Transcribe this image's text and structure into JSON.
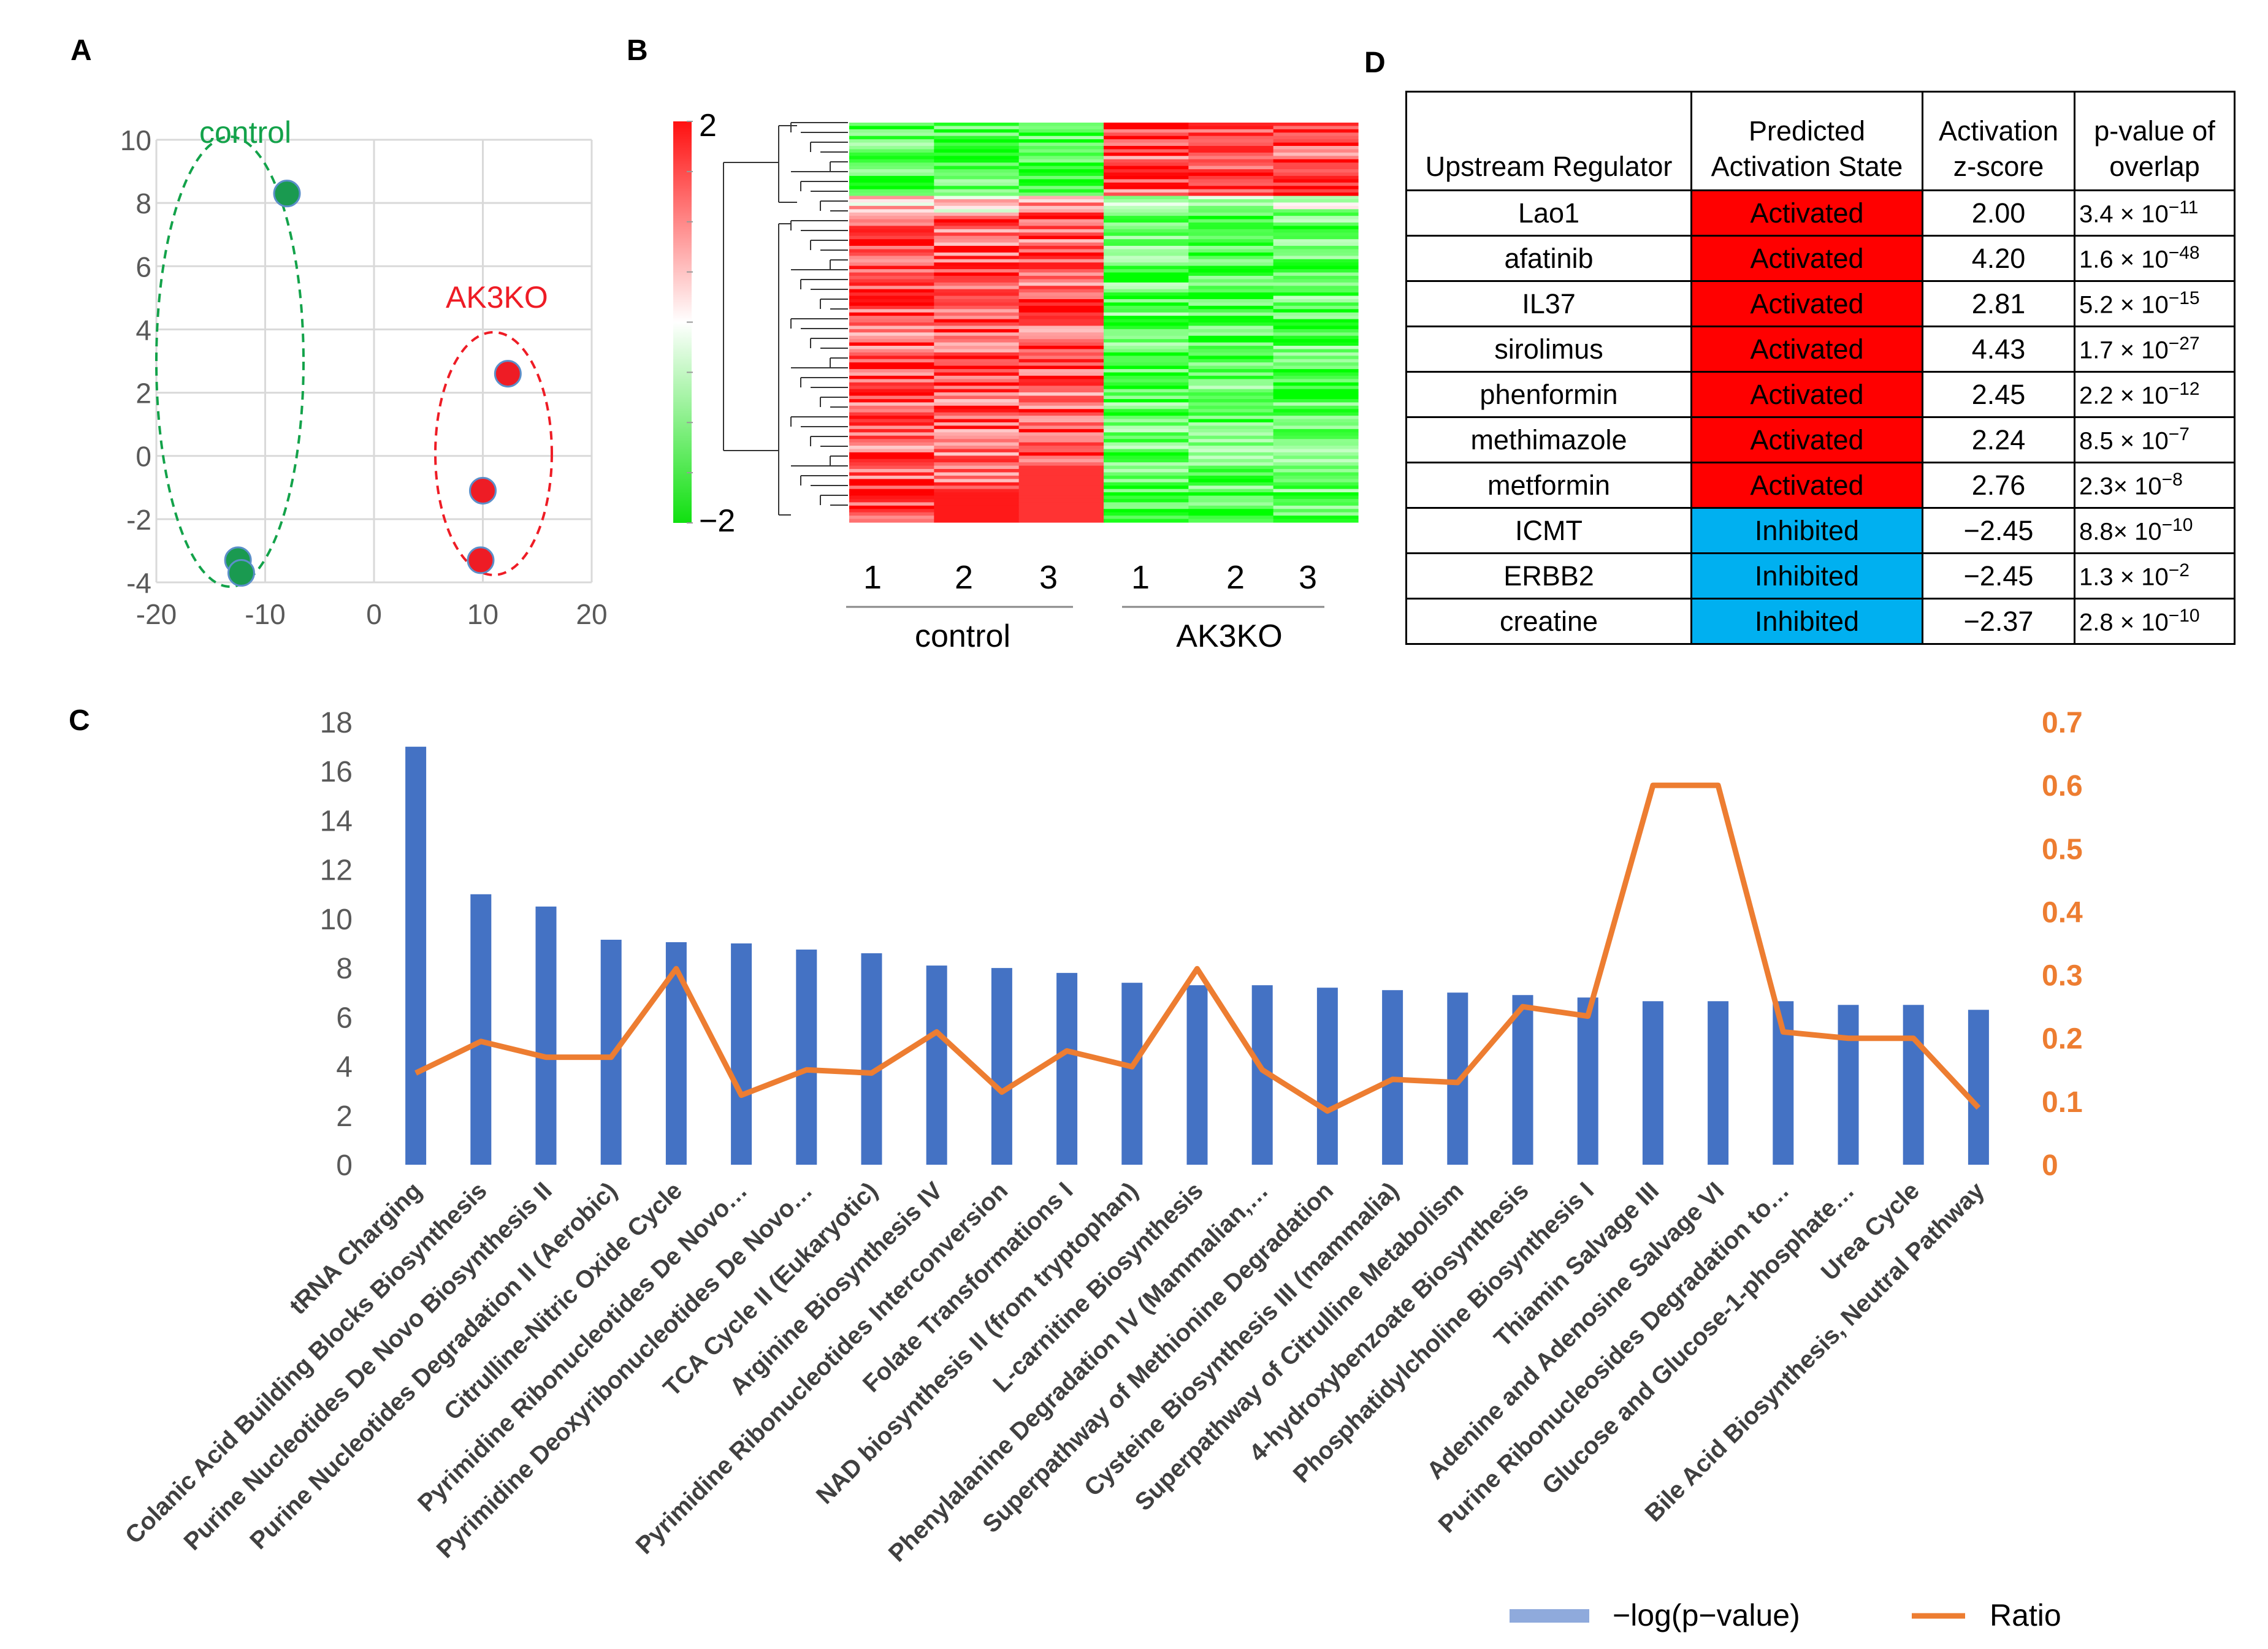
{
  "panel_labels": {
    "A": "A",
    "B": "B",
    "C": "C",
    "D": "D"
  },
  "chart_data": [
    {
      "panel": "A",
      "type": "scatter",
      "xlim": [
        -20,
        20
      ],
      "ylim": [
        -4,
        10
      ],
      "xticks": [
        "-20",
        "-10",
        "0",
        "10",
        "20"
      ],
      "yticks": [
        "10",
        "8",
        "6",
        "4",
        "2",
        "0",
        "-2",
        "-4"
      ],
      "xtick_values": [
        -20,
        -10,
        0,
        10,
        20
      ],
      "ytick_values": [
        10,
        8,
        6,
        4,
        2,
        0,
        -2,
        -4
      ],
      "grid": true,
      "series": [
        {
          "name": "control",
          "color": "#1a9a50",
          "points": [
            [
              -8,
              8.3
            ],
            [
              -12.5,
              -3.3
            ],
            [
              -12.2,
              -3.7
            ]
          ]
        },
        {
          "name": "AK3KO",
          "color": "#ee1c25",
          "points": [
            [
              12.3,
              2.6
            ],
            [
              10,
              -1.1
            ],
            [
              9.8,
              -3.3
            ]
          ]
        }
      ],
      "annotations": {
        "control": "control",
        "ak3ko": "AK3KO"
      },
      "group_colors": {
        "control": "#13a24a",
        "ak3ko": "#ee1c25"
      }
    },
    {
      "panel": "B",
      "type": "heatmap",
      "color_scale": {
        "max_label": "2",
        "min_label": "−2",
        "high_color": "#ff1010",
        "mid_color": "#ffffff",
        "low_color": "#10e010"
      },
      "columns": [
        "1",
        "2",
        "3",
        "1",
        "2",
        "3"
      ],
      "groups": [
        "control",
        "AK3KO"
      ]
    },
    {
      "panel": "C",
      "type": "bar",
      "categories": [
        "tRNA Charging",
        "Colanic Acid Building Blocks Biosynthesis",
        "Purine Nucleotides De Novo Biosynthesis II",
        "Purine Nucleotides Degradation II (Aerobic)",
        "Citrulline-Nitric Oxide Cycle",
        "Pyrimidine Ribonucleotides De Novo…",
        "Pyrimidine Deoxyribonucleotides De Novo…",
        "TCA Cycle II (Eukaryotic)",
        "Arginine Biosynthesis IV",
        "Pyrimidine Ribonucleotides Interconversion",
        "Folate Transformations I",
        "NAD biosynthesis II (from tryptophan)",
        "L-carnitine Biosynthesis",
        "Phenylalanine Degradation IV (Mammalian,…",
        "Superpathway of Methionine Degradation",
        "Cysteine Biosynthesis III (mammalia)",
        "Superpathway of Citrulline Metabolism",
        "4-hydroxybenzoate Biosynthesis",
        "Phosphatidylcholine Biosynthesis I",
        "Thiamin Salvage III",
        "Adenine and Adenosine Salvage VI",
        "Purine Ribonucleosides Degradation to…",
        "Glucose and Glucose-1-phosphate…",
        "Urea Cycle",
        "Bile Acid Biosynthesis, Neutral Pathway"
      ],
      "series": [
        {
          "name": "−log(p−value)",
          "axis": "left",
          "color": "#4472c4",
          "values": [
            17.0,
            11.0,
            10.5,
            9.15,
            9.05,
            9.0,
            8.75,
            8.6,
            8.1,
            8.0,
            7.8,
            7.4,
            7.3,
            7.3,
            7.2,
            7.1,
            7.0,
            6.9,
            6.8,
            6.65,
            6.65,
            6.65,
            6.5,
            6.5,
            6.3
          ]
        },
        {
          "name": "Ratio",
          "axis": "right",
          "color": "#ed7d31",
          "values": [
            0.145,
            0.195,
            0.17,
            0.17,
            0.31,
            0.11,
            0.15,
            0.145,
            0.21,
            0.115,
            0.18,
            0.155,
            0.31,
            0.15,
            0.085,
            0.135,
            0.13,
            0.25,
            0.235,
            0.6,
            0.6,
            0.21,
            0.2,
            0.2,
            0.09
          ]
        }
      ],
      "ylim_left": [
        0,
        18
      ],
      "ylim_right": [
        0,
        0.7
      ],
      "yticks_left": [
        "18",
        "16",
        "14",
        "12",
        "10",
        "8",
        "6",
        "4",
        "2",
        "0"
      ],
      "ytick_values_left": [
        18,
        16,
        14,
        12,
        10,
        8,
        6,
        4,
        2,
        0
      ],
      "yticks_right": [
        "0.7",
        "0.6",
        "0.5",
        "0.4",
        "0.3",
        "0.2",
        "0.1",
        "0"
      ],
      "ytick_values_right": [
        0.7,
        0.6,
        0.5,
        0.4,
        0.3,
        0.2,
        0.1,
        0
      ],
      "legend": {
        "placement": "bottom-right",
        "bar_label": "−log(p−value)",
        "line_label": "Ratio",
        "bar_swatch_color": "#8faadc"
      }
    }
  ],
  "table_D": {
    "headers": {
      "regulator": "Upstream Regulator",
      "state_line1": "Predicted",
      "state_line2": "Activation State",
      "z_line1": "Activation",
      "z_line2": "z-score",
      "p_line1": "p-value of",
      "p_line2": "overlap"
    },
    "activated_color": "#ff0000",
    "inhibited_color": "#00b0f0",
    "rows": [
      {
        "regulator": "Lao1",
        "state": "Activated",
        "z": "2.00",
        "p_base": "3.4 × 10",
        "p_exp": "−11"
      },
      {
        "regulator": "afatinib",
        "state": "Activated",
        "z": "4.20",
        "p_base": "1.6 × 10",
        "p_exp": "−48"
      },
      {
        "regulator": "IL37",
        "state": "Activated",
        "z": "2.81",
        "p_base": "5.2 × 10",
        "p_exp": "−15"
      },
      {
        "regulator": "sirolimus",
        "state": "Activated",
        "z": "4.43",
        "p_base": "1.7 × 10",
        "p_exp": "−27"
      },
      {
        "regulator": "phenformin",
        "state": "Activated",
        "z": "2.45",
        "p_base": "2.2 × 10",
        "p_exp": "−12"
      },
      {
        "regulator": "methimazole",
        "state": "Activated",
        "z": "2.24",
        "p_base": "8.5 × 10",
        "p_exp": "−7"
      },
      {
        "regulator": "metformin",
        "state": "Activated",
        "z": "2.76",
        "p_base": "2.3× 10",
        "p_exp": "−8"
      },
      {
        "regulator": "ICMT",
        "state": "Inhibited",
        "z": "−2.45",
        "p_base": "8.8× 10",
        "p_exp": "−10"
      },
      {
        "regulator": "ERBB2",
        "state": "Inhibited",
        "z": "−2.45",
        "p_base": "1.3 × 10",
        "p_exp": "−2"
      },
      {
        "regulator": "creatine",
        "state": "Inhibited",
        "z": "−2.37",
        "p_base": "2.8 × 10",
        "p_exp": "−10"
      }
    ]
  }
}
